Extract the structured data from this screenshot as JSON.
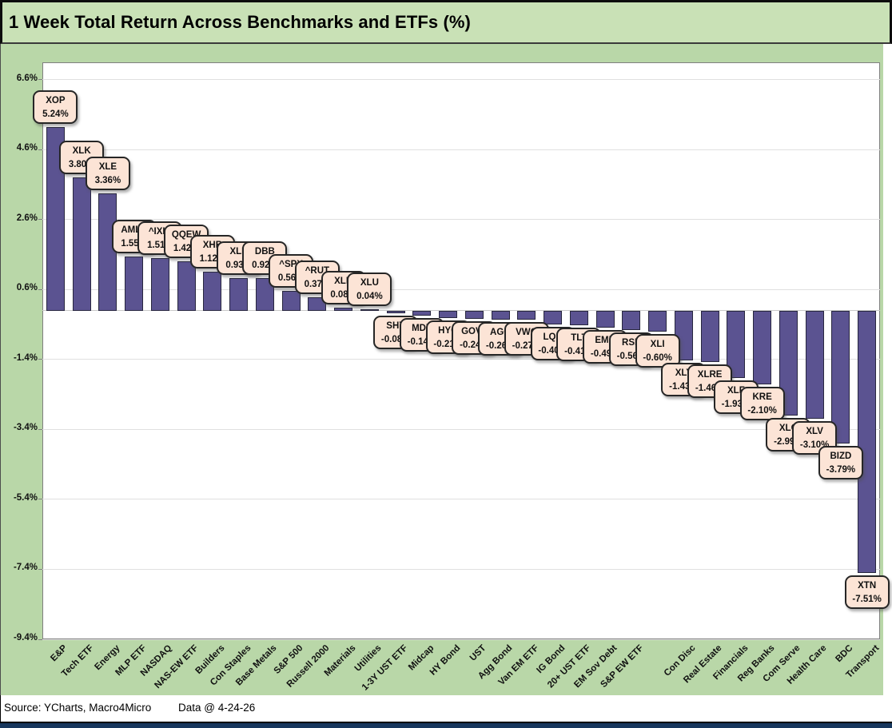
{
  "title": "1 Week Total Return Across Benchmarks and ETFs (%)",
  "footer": {
    "source": "Source: YCharts, Macro4Micro",
    "data_date": "Data @ 4-24-26"
  },
  "chart_data": {
    "type": "bar",
    "title": "1 Week Total Return Across Benchmarks and ETFs (%)",
    "xlabel": "",
    "ylabel": "",
    "categories": [
      "E&P",
      "Tech ETF",
      "Energy",
      "MLP ETF",
      "NASDAQ",
      "NAS-EW ETF",
      "Builders",
      "Con Staples",
      "Base Metals",
      "S&P 500",
      "Russell 2000",
      "Materials",
      "Utilities",
      "1-3Y UST ETF",
      "Midcap",
      "HY Bond",
      "UST",
      "Agg Bond",
      "Van EM ETF",
      "IG Bond",
      "20+ UST ETF",
      "EM Sov Debt",
      "S&P EW ETF",
      "",
      "Con Disc",
      "Real Estate",
      "Financials",
      "Reg Banks",
      "Com Serve",
      "Health Care",
      "BDC",
      "Transport"
    ],
    "tickers": [
      "XOP",
      "XLK",
      "XLE",
      "AMLP",
      "^IXIC",
      "QQEW",
      "XHB",
      "XLP",
      "DBB",
      "^SPX",
      "^RUT",
      "XLB",
      "XLU",
      "SHY",
      "MDY",
      "HYG",
      "GOVT",
      "AGG",
      "VWO",
      "LQD",
      "TLT",
      "EMB",
      "RSP",
      "XLI",
      "XLY",
      "XLRE",
      "XLF",
      "KRE",
      "XLC",
      "XLV",
      "BIZD",
      "XTN"
    ],
    "values": [
      5.24,
      3.8,
      3.36,
      1.55,
      1.51,
      1.42,
      1.12,
      0.93,
      0.92,
      0.56,
      0.37,
      0.08,
      0.04,
      -0.08,
      -0.14,
      -0.21,
      -0.24,
      -0.26,
      -0.27,
      -0.4,
      -0.41,
      -0.49,
      -0.56,
      -0.6,
      -1.43,
      -1.46,
      -1.93,
      -2.1,
      -2.99,
      -3.1,
      -3.79,
      -7.51
    ],
    "y_ticks": [
      6.6,
      4.6,
      2.6,
      0.6,
      -1.4,
      -3.4,
      -5.4,
      -7.4,
      -9.4
    ],
    "y_tick_suffix": "%",
    "ylim": [
      -9.4,
      7.1
    ],
    "grid": true,
    "legend": false,
    "data_label_format": "TICKER newline VALUE%",
    "colors": {
      "bar_fill": "#5b5391",
      "bar_border": "#28273f",
      "callout_fill": "#fce4d6",
      "callout_border": "#262626",
      "chart_background": "#b9d7a8",
      "title_band": "#c9e1b6",
      "plot_background": "#ffffff",
      "gridline": "#e0e0e0",
      "bottom_strip": "#17375d"
    }
  }
}
